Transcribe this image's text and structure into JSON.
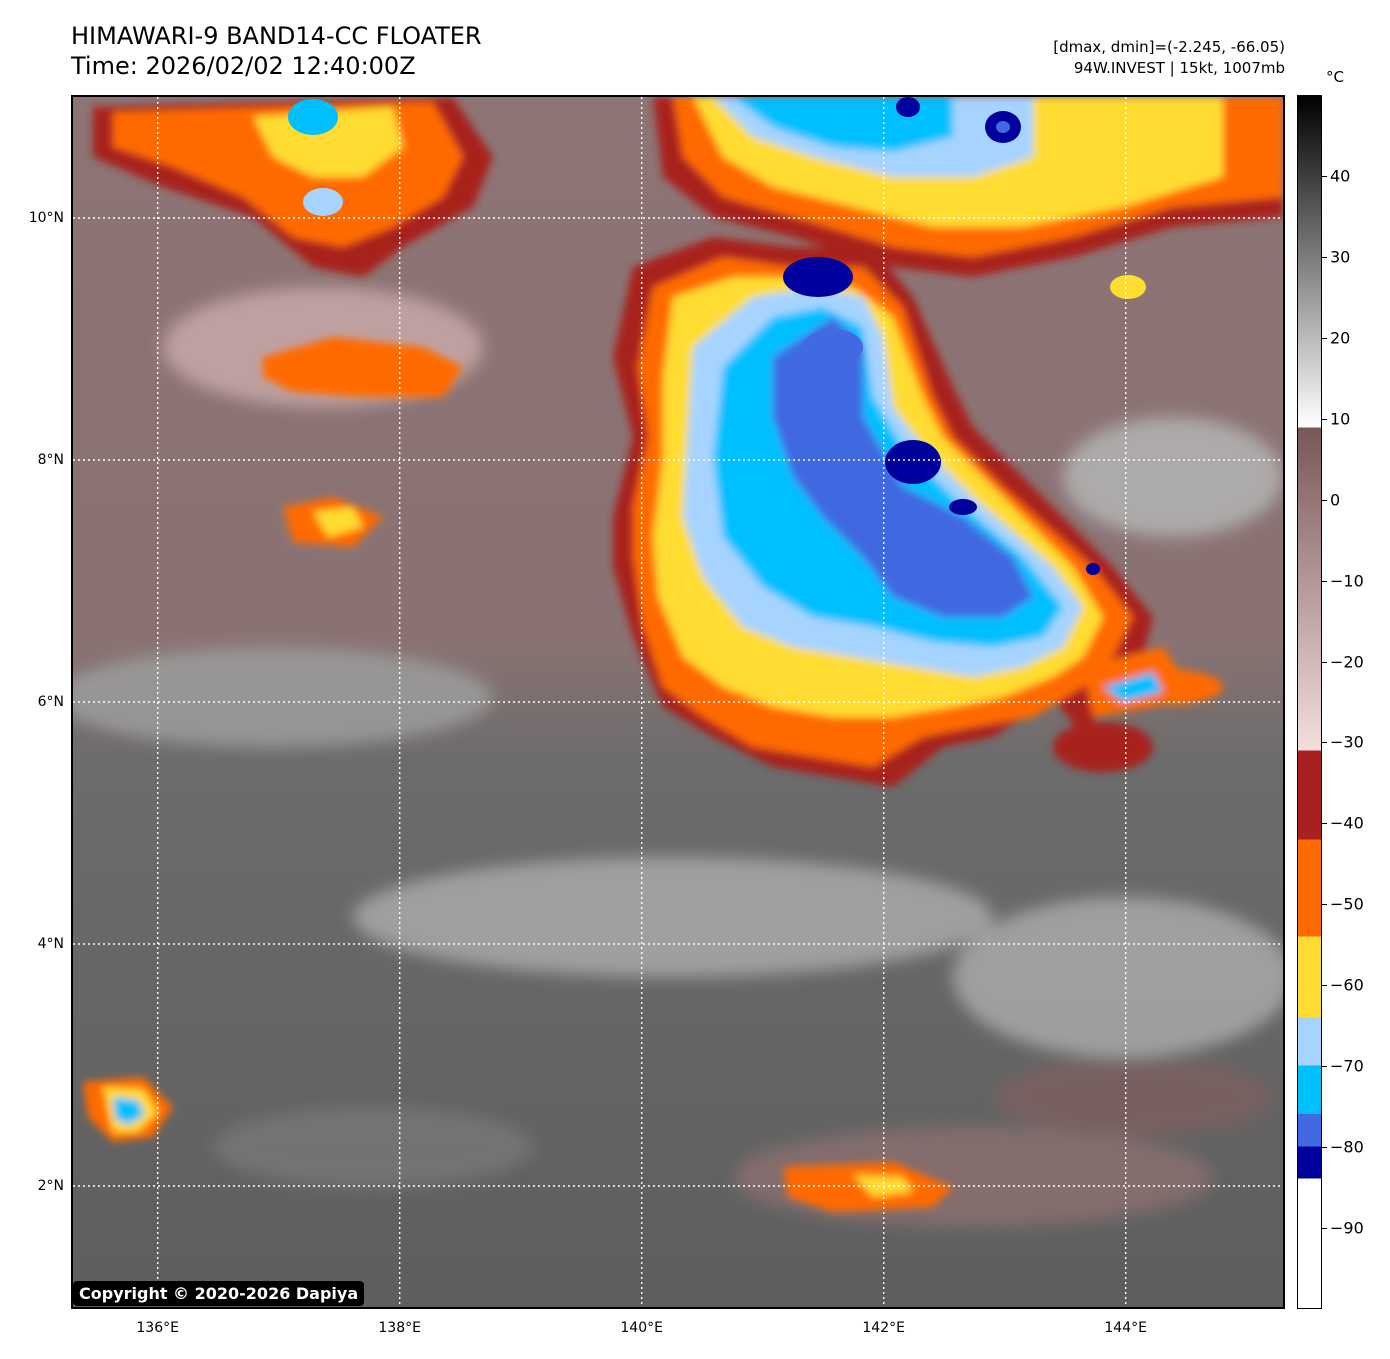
{
  "header": {
    "title_line1": "HIMAWARI-9 BAND14-CC FLOATER",
    "title_line2": "Time: 2026/02/02 12:40:00Z",
    "info_line1": "[dmax, dmin]=(-2.245, -66.05)",
    "info_line2": "94W.INVEST | 15kt, 1007mb"
  },
  "map": {
    "lat_range": [
      1.0,
      11.0
    ],
    "lon_range": [
      135.3,
      145.3
    ],
    "lat_ticks": [
      {
        "value": 10,
        "label": "10°N"
      },
      {
        "value": 8,
        "label": "8°N"
      },
      {
        "value": 6,
        "label": "6°N"
      },
      {
        "value": 4,
        "label": "4°N"
      },
      {
        "value": 2,
        "label": "2°N"
      }
    ],
    "lon_ticks": [
      {
        "value": 136,
        "label": "136°E"
      },
      {
        "value": 138,
        "label": "138°E"
      },
      {
        "value": 140,
        "label": "140°E"
      },
      {
        "value": 142,
        "label": "142°E"
      },
      {
        "value": 144,
        "label": "144°E"
      }
    ],
    "gridlines": "dotted white",
    "copyright": "Copyright © 2020-2026 Dapiya"
  },
  "colorbar": {
    "unit": "°C",
    "range": [
      -100,
      50
    ],
    "ticks": [
      {
        "value": 40,
        "label": "40"
      },
      {
        "value": 30,
        "label": "30"
      },
      {
        "value": 20,
        "label": "20"
      },
      {
        "value": 10,
        "label": "10"
      },
      {
        "value": 0,
        "label": "0"
      },
      {
        "value": -10,
        "label": "−10"
      },
      {
        "value": -20,
        "label": "−20"
      },
      {
        "value": -30,
        "label": "−30"
      },
      {
        "value": -40,
        "label": "−40"
      },
      {
        "value": -50,
        "label": "−50"
      },
      {
        "value": -60,
        "label": "−60"
      },
      {
        "value": -70,
        "label": "−70"
      },
      {
        "value": -80,
        "label": "−80"
      },
      {
        "value": -90,
        "label": "−90"
      }
    ],
    "segments": [
      {
        "from": 9,
        "to": 50,
        "colors": [
          "#ffffff",
          "#000000"
        ]
      },
      {
        "from": -31,
        "to": 9,
        "colors": [
          "#f3dede",
          "#7a5656"
        ]
      },
      {
        "from": -42,
        "to": -31,
        "colors": [
          "#a8201f"
        ]
      },
      {
        "from": -54,
        "to": -42,
        "colors": [
          "#ff6a00"
        ]
      },
      {
        "from": -64,
        "to": -54,
        "colors": [
          "#ffdc32"
        ]
      },
      {
        "from": -70,
        "to": -64,
        "colors": [
          "#a6d4ff"
        ]
      },
      {
        "from": -76,
        "to": -70,
        "colors": [
          "#00bfff"
        ]
      },
      {
        "from": -80,
        "to": -76,
        "colors": [
          "#4169e1"
        ]
      },
      {
        "from": -84,
        "to": -80,
        "colors": [
          "#00009c"
        ]
      },
      {
        "from": -100,
        "to": -84,
        "colors": [
          "#ffffff"
        ]
      }
    ]
  }
}
